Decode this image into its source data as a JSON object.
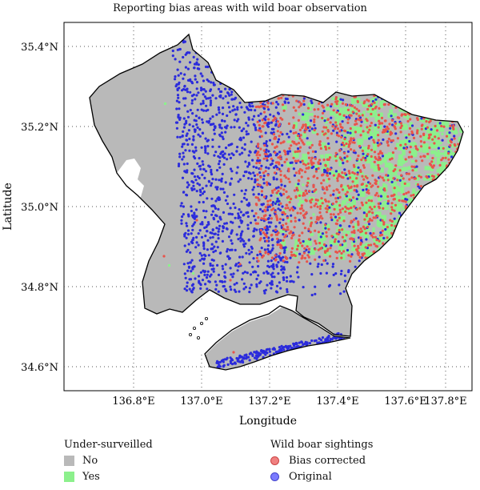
{
  "title": "Reporting bias areas with wild boar observation",
  "axes": {
    "xlabel": "Longitude",
    "ylabel": "Latitude",
    "x_ticks": [
      "136.8°E",
      "137.0°E",
      "137.2°E",
      "137.4°E",
      "137.6°E",
      "137.8°E"
    ],
    "y_ticks": [
      "35.4°N",
      "35.2°N",
      "35.0°N",
      "34.8°N",
      "34.6°N"
    ],
    "grid": true
  },
  "colors": {
    "region_no": "#b9b9b9",
    "region_yes": "#8cf08c",
    "bias_corrected": "#e8544a",
    "original": "#2b2bdc",
    "coastline": "#000000"
  },
  "legend_surveil": {
    "title": "Under-surveilled",
    "items": [
      {
        "label": "No",
        "color": "#b9b9b9"
      },
      {
        "label": "Yes",
        "color": "#8cf08c"
      }
    ]
  },
  "legend_sightings": {
    "title": "Wild boar sightings",
    "items": [
      {
        "label": "Bias corrected",
        "color": "#f08080"
      },
      {
        "label": "Original",
        "color": "#7b7bff"
      }
    ]
  }
}
